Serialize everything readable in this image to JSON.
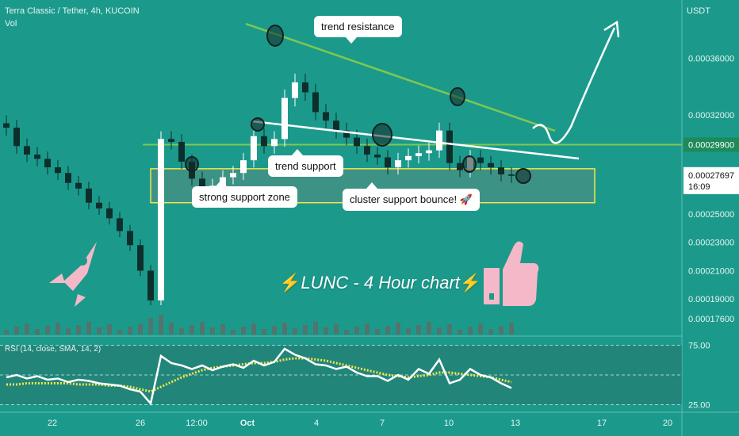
{
  "header": {
    "symbol_line": "Terra Classic / Tether, 4h, KUCOIN",
    "vol_label": "Vol",
    "currency": "USDT"
  },
  "annotations": {
    "trend_resistance": "trend resistance",
    "trend_support": "trend support",
    "strong_support_zone": "strong support zone",
    "cluster_support": "cluster support bounce! 🚀",
    "title_text": "LUNC - 4 Hour chart",
    "bolt": "⚡"
  },
  "rsi": {
    "label": "RSI (14, close, SMA, 14, 2)"
  },
  "colors": {
    "background": "#1b9a8c",
    "candle": "#ffffff",
    "candle_dark": "#0d2f2b",
    "resistance": "#7ec850",
    "zone_border": "#f0e64a",
    "price_tag": "#1d8a5a",
    "rsi_sma": "#f2e645"
  },
  "icons": [
    "rocket-icon",
    "thumbs-up-icon"
  ],
  "chart_data": {
    "type": "candlestick",
    "y_axis": {
      "ticks": [
        "0.00036000",
        "0.00032000",
        "0.00029900",
        "0.00027697",
        "0.00025000",
        "0.00023000",
        "0.00021000",
        "0.00019000",
        "0.00017600"
      ],
      "range": [
        0.000166,
        0.00039
      ]
    },
    "x_axis": {
      "ticks": [
        "22",
        "26",
        "12:00",
        "Oct",
        "4",
        "7",
        "10",
        "13",
        "17",
        "20"
      ]
    },
    "levels": {
      "horizontal_line": 0.000299,
      "support_zone": [
        0.000258,
        0.000282
      ]
    },
    "current_price": {
      "value": "0.00027697",
      "countdown": "16:09"
    },
    "close_series": [
      0.000311,
      0.000298,
      0.000292,
      0.000289,
      0.000283,
      0.000279,
      0.000272,
      0.000268,
      0.000258,
      0.000254,
      0.000247,
      0.000238,
      0.000228,
      0.00021,
      0.000189,
      0.000303,
      0.000301,
      0.000287,
      0.000275,
      0.000262,
      0.00027,
      0.000276,
      0.000279,
      0.000288,
      0.000305,
      0.000298,
      0.000303,
      0.000332,
      0.000343,
      0.000336,
      0.000322,
      0.000316,
      0.000309,
      0.000304,
      0.000298,
      0.000292,
      0.00029,
      0.000283,
      0.000288,
      0.000291,
      0.000293,
      0.000295,
      0.000309,
      0.000286,
      0.000281,
      0.00029,
      0.000286,
      0.000283,
      0.000278,
      0.000277
    ],
    "rsi": {
      "ticks": [
        "75.00",
        "25.00"
      ],
      "range": [
        20,
        80
      ],
      "values": [
        48,
        50,
        47,
        49,
        46,
        47,
        44,
        46,
        45,
        43,
        42,
        41,
        38,
        36,
        26,
        66,
        60,
        58,
        55,
        58,
        54,
        57,
        59,
        56,
        62,
        58,
        61,
        72,
        67,
        64,
        59,
        58,
        55,
        57,
        52,
        49,
        49,
        45,
        50,
        46,
        55,
        51,
        63,
        43,
        46,
        55,
        50,
        48,
        43,
        39
      ],
      "sma": [
        42,
        42,
        43,
        43,
        43,
        43,
        43,
        42,
        42,
        42,
        41,
        41,
        40,
        38,
        36,
        40,
        44,
        48,
        51,
        54,
        56,
        57,
        58,
        59,
        60,
        60,
        61,
        63,
        64,
        64,
        63,
        62,
        60,
        58,
        56,
        54,
        52,
        50,
        49,
        48,
        49,
        50,
        52,
        52,
        51,
        50,
        49,
        48,
        46,
        44
      ]
    }
  }
}
